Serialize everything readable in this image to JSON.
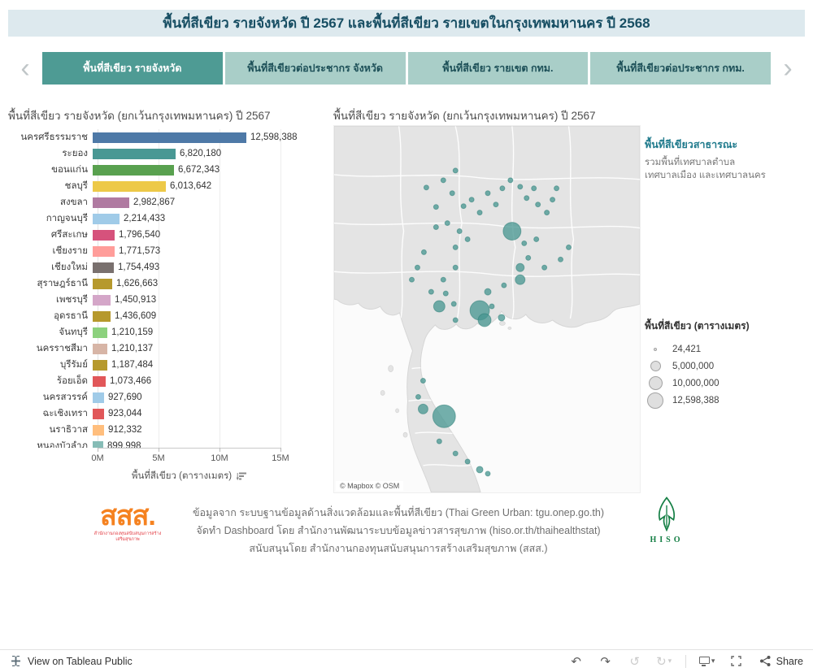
{
  "header": {
    "title": "พื้นที่สีเขียว รายจังหวัด ปี 2567 และพื้นที่สีเขียว รายเขตในกรุงเทพมหานคร ปี 2568"
  },
  "tabs": [
    {
      "id": "green-area-by-province",
      "label": "พื้นที่สีเขียว รายจังหวัด",
      "active": true
    },
    {
      "id": "green-area-per-capita-province",
      "label": "พื้นที่สีเขียวต่อประชากร จังหวัด",
      "active": false
    },
    {
      "id": "green-area-by-district-bkk",
      "label": "พื้นที่สีเขียว รายเขต กทม.",
      "active": false
    },
    {
      "id": "green-area-per-capita-bkk",
      "label": "พื้นที่สีเขียวต่อประชากร กทม.",
      "active": false
    }
  ],
  "chart_data": {
    "type": "bar",
    "orientation": "horizontal",
    "title": "พื้นที่สีเขียว รายจังหวัด (ยกเว้นกรุงเทพมหานคร) ปี 2567",
    "xlabel": "พื้นที่สีเขียว (ตารางเมตร)",
    "x_ticks": [
      "0M",
      "5M",
      "10M",
      "15M"
    ],
    "xlim": [
      0,
      15000000
    ],
    "grid": true,
    "categories": [
      "นครศรีธรรมราช",
      "ระยอง",
      "ขอนแก่น",
      "ชลบุรี",
      "สงขลา",
      "กาญจนบุรี",
      "ศรีสะเกษ",
      "เชียงราย",
      "เชียงใหม่",
      "สุราษฎร์ธานี",
      "เพชรบุรี",
      "อุดรธานี",
      "จันทบุรี",
      "นครราชสีมา",
      "บุรีรัมย์",
      "ร้อยเอ็ด",
      "นครสวรรค์",
      "ฉะเชิงเทรา",
      "นราธิวาส",
      "หนองบัวลำภู"
    ],
    "values": [
      12598388,
      6820180,
      6672343,
      6013642,
      2982867,
      2214433,
      1796540,
      1771573,
      1754493,
      1626663,
      1450913,
      1436609,
      1210159,
      1210137,
      1187484,
      1073466,
      927690,
      923044,
      912332,
      899998
    ],
    "value_labels": [
      "12,598,388",
      "6,820,180",
      "6,672,343",
      "6,013,642",
      "2,982,867",
      "2,214,433",
      "1,796,540",
      "1,771,573",
      "1,754,493",
      "1,626,663",
      "1,450,913",
      "1,436,609",
      "1,210,159",
      "1,210,137",
      "1,187,484",
      "1,073,466",
      "927,690",
      "923,044",
      "912,332",
      "899,998"
    ],
    "colors": [
      "#4E79A7",
      "#499894",
      "#59A14F",
      "#EDC948",
      "#B07AA1",
      "#A0CBE8",
      "#D6527C",
      "#FF9D9A",
      "#79706E",
      "#B6992D",
      "#D4A6C8",
      "#B6992D",
      "#8CD17D",
      "#D7B5A6",
      "#B6992D",
      "#E15759",
      "#A0CBE8",
      "#E15759",
      "#FFBE7D",
      "#86BCB6"
    ]
  },
  "map": {
    "title": "พื้นที่สีเขียว รายจังหวัด (ยกเว้นกรุงเทพมหานคร) ปี 2567",
    "attribution": "© Mapbox  © OSM",
    "note_title": "พื้นที่สีเขียวสาธารณะ",
    "note_lines": [
      "รวมพื้นที่เทศบาลตำบล",
      "เทศบาลเมือง และเทศบาลนคร"
    ],
    "size_legend": {
      "title": "พื้นที่สีเขียว (ตารางเมตร)",
      "items": [
        {
          "label": "24,421",
          "d": 4
        },
        {
          "label": "5,000,000",
          "d": 13
        },
        {
          "label": "10,000,000",
          "d": 17
        },
        {
          "label": "12,598,388",
          "d": 20
        }
      ]
    },
    "bubble_color": "#459590",
    "bubbles": [
      [
        114,
        76,
        3
      ],
      [
        135,
        67,
        3
      ],
      [
        146,
        83,
        3
      ],
      [
        150,
        55,
        3
      ],
      [
        160,
        99,
        3
      ],
      [
        170,
        91,
        3
      ],
      [
        180,
        107,
        3
      ],
      [
        190,
        83,
        3
      ],
      [
        200,
        97,
        3
      ],
      [
        208,
        77,
        3
      ],
      [
        218,
        67,
        3
      ],
      [
        230,
        75,
        3
      ],
      [
        238,
        89,
        3
      ],
      [
        247,
        77,
        3
      ],
      [
        252,
        97,
        3
      ],
      [
        263,
        107,
        3
      ],
      [
        270,
        91,
        3
      ],
      [
        275,
        77,
        3
      ],
      [
        126,
        100,
        3
      ],
      [
        140,
        120,
        3
      ],
      [
        155,
        130,
        3
      ],
      [
        165,
        140,
        3
      ],
      [
        150,
        150,
        3
      ],
      [
        96,
        190,
        3
      ],
      [
        103,
        175,
        3
      ],
      [
        111,
        156,
        3
      ],
      [
        126,
        125,
        3
      ],
      [
        220,
        130,
        11
      ],
      [
        235,
        145,
        3
      ],
      [
        250,
        140,
        3
      ],
      [
        230,
        175,
        5
      ],
      [
        240,
        163,
        3
      ],
      [
        260,
        175,
        3
      ],
      [
        280,
        165,
        3
      ],
      [
        290,
        150,
        3
      ],
      [
        230,
        190,
        6
      ],
      [
        210,
        197,
        3
      ],
      [
        190,
        205,
        4
      ],
      [
        150,
        175,
        3
      ],
      [
        135,
        190,
        3
      ],
      [
        120,
        205,
        3
      ],
      [
        138,
        207,
        3
      ],
      [
        148,
        220,
        3
      ],
      [
        130,
        223,
        7
      ],
      [
        180,
        228,
        12
      ],
      [
        186,
        240,
        8
      ],
      [
        195,
        223,
        3
      ],
      [
        207,
        237,
        4
      ],
      [
        150,
        240,
        3
      ],
      [
        110,
        315,
        3
      ],
      [
        104,
        335,
        3
      ],
      [
        110,
        350,
        6
      ],
      [
        136,
        359,
        14
      ],
      [
        130,
        390,
        3
      ],
      [
        150,
        405,
        3
      ],
      [
        165,
        415,
        3
      ],
      [
        180,
        425,
        4
      ],
      [
        190,
        430,
        3
      ]
    ]
  },
  "footer": {
    "credit_lines": [
      "ข้อมูลจาก ระบบฐานข้อมูลด้านสิ่งแวดล้อมและพื้นที่สีเขียว (Thai Green Urban: tgu.onep.go.th)",
      "จัดทำ Dashboard โดย สำนักงานพัฒนาระบบข้อมูลข่าวสารสุขภาพ (hiso.or.th/thaihealthstat)",
      "สนับสนุนโดย สำนักงานกองทุนสนับสนุนการสร้างเสริมสุขภาพ (สสส.)"
    ],
    "sss_logo_text": "สสส.",
    "sss_logo_caption": "สำนักงานกองทุนสนับสนุนการสร้างเสริมสุขภาพ",
    "hiso_logo_text": "HISO"
  },
  "toolbar": {
    "view_label": "View on Tableau Public",
    "share_label": "Share",
    "history_icons": [
      {
        "name": "undo-icon",
        "glyph": "↶",
        "disabled": false
      },
      {
        "name": "redo-icon",
        "glyph": "↷",
        "disabled": false
      },
      {
        "name": "replay-icon",
        "glyph": "↺",
        "disabled": true
      },
      {
        "name": "refresh-icon",
        "glyph": "↻",
        "disabled": true,
        "caret": true
      }
    ]
  }
}
